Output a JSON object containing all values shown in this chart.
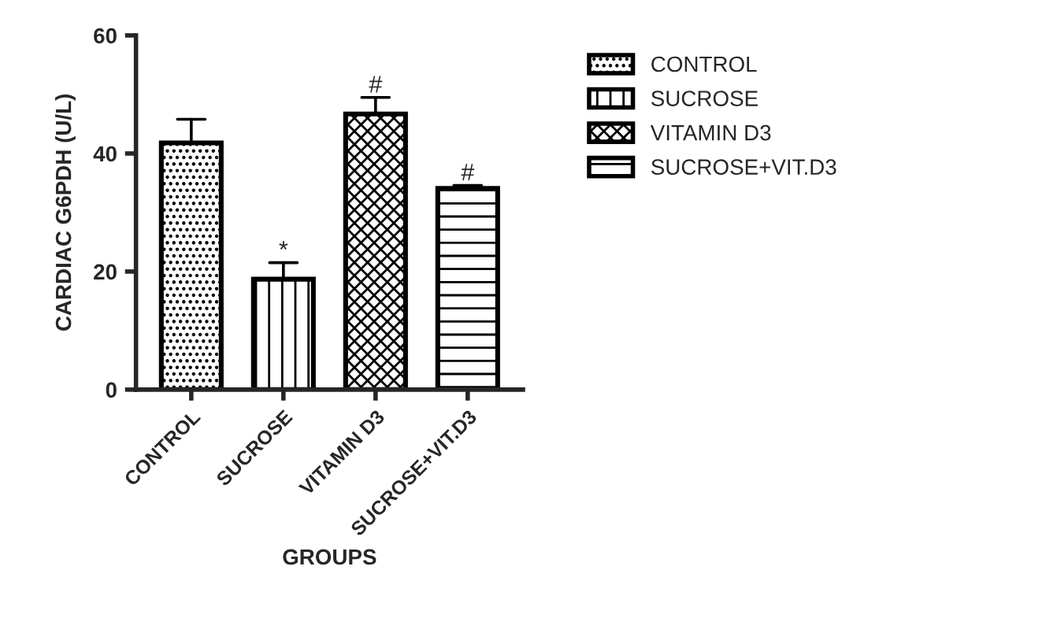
{
  "chart_data": {
    "type": "bar",
    "xlabel": "GROUPS",
    "ylabel": "CARDIAC G6PDH (U/L)",
    "categories": [
      "CONTROL",
      "SUCROSE",
      "VITAMIN D3",
      "SUCROSE+VIT.D3"
    ],
    "series": [
      {
        "name": "CONTROL",
        "color": "#000000",
        "values": [
          41.8,
          null,
          null,
          null
        ],
        "errors": [
          [
            41.8,
            45.8
          ],
          null,
          null,
          null
        ]
      },
      {
        "name": "SUCROSE",
        "color": "#000000",
        "values": [
          null,
          18.7,
          null,
          null
        ],
        "errors": [
          null,
          [
            18.7,
            21.5
          ],
          null,
          null
        ]
      },
      {
        "name": "VITAMIN D3",
        "color": "#000000",
        "values": [
          null,
          null,
          46.7,
          null
        ],
        "errors": [
          null,
          null,
          [
            46.7,
            49.5
          ],
          null
        ]
      },
      {
        "name": "SUCROSE+VIT.D3",
        "color": "#000000",
        "values": [
          null,
          null,
          null,
          34.1
        ],
        "errors": [
          null,
          null,
          null,
          [
            34.1,
            34.6
          ]
        ]
      }
    ],
    "ylim": [
      0,
      60
    ],
    "yticks": [
      0,
      20,
      40,
      60
    ],
    "grid": false,
    "legend": "right",
    "annotations": [
      {
        "text": "*",
        "x": "SUCROSE",
        "y": 21.5
      },
      {
        "text": "#",
        "x": "VITAMIN D3",
        "y": 49.5
      },
      {
        "text": "#",
        "x": "SUCROSE+VIT.D3",
        "y": 34.6
      }
    ]
  }
}
